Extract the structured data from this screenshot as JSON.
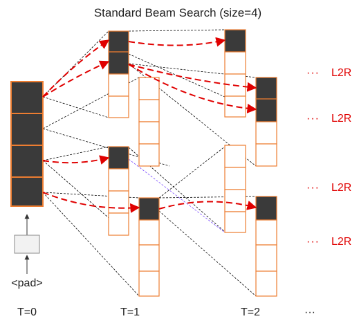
{
  "title": "Standard  Beam Search (size=4)",
  "pad_label": "<pad>",
  "ellipsis": "···",
  "timesteps": [
    "T=0",
    "T=1",
    "T=2"
  ],
  "right_labels": [
    {
      "dots": "···",
      "text": "L2R"
    },
    {
      "dots": "···",
      "text": "L2R"
    },
    {
      "dots": "···",
      "text": "L2R"
    },
    {
      "dots": "···",
      "text": "L2R"
    }
  ],
  "colors": {
    "cell_fill": "#3a3a3a",
    "cell_border": "#ed7d31",
    "arrow": "#e00000",
    "connector": "#000000",
    "text": "#222222"
  }
}
